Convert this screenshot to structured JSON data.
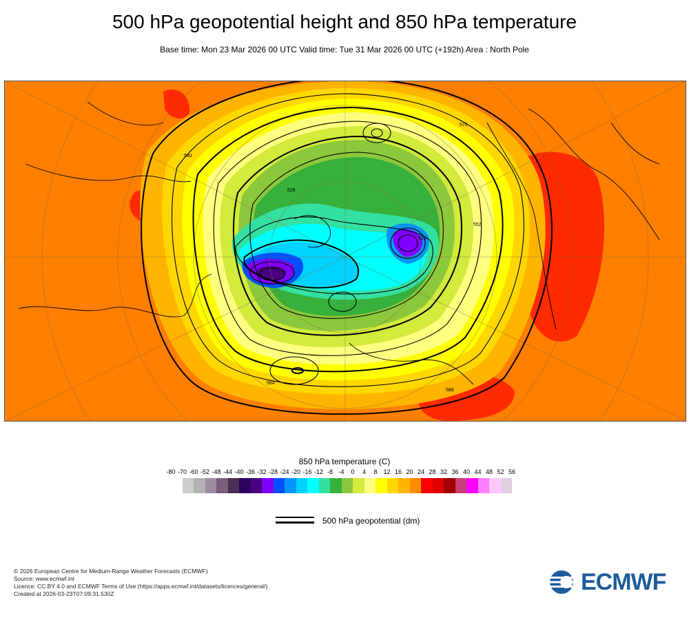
{
  "title": "500 hPa geopotential height and 850 hPa temperature",
  "subtitle": "Base time: Mon 23 Mar 2026 00 UTC Valid time: Tue 31 Mar 2026 00 UTC (+192h) Area : North Pole",
  "map": {
    "projection": "polar stereographic",
    "area": "North Pole",
    "contour_labels": [
      "516",
      "528",
      "540",
      "552",
      "564",
      "576",
      "588"
    ]
  },
  "legend": {
    "title": "850 hPa temperature (C)",
    "ticks": [
      "-80",
      "-70",
      "-60",
      "-52",
      "-48",
      "-44",
      "-40",
      "-36",
      "-32",
      "-28",
      "-24",
      "-20",
      "-16",
      "-12",
      "-8",
      "-4",
      "0",
      "4",
      "8",
      "12",
      "16",
      "20",
      "24",
      "28",
      "32",
      "36",
      "40",
      "44",
      "48",
      "52",
      "56"
    ],
    "colors": [
      "#e6e6e6",
      "#cccccc",
      "#b3b3b3",
      "#a08ca0",
      "#7b5f7b",
      "#4b2d55",
      "#2e005f",
      "#4b0082",
      "#7f00ff",
      "#0050ff",
      "#0096ff",
      "#00d2ff",
      "#00ffff",
      "#33e0a0",
      "#37b03c",
      "#8cc83c",
      "#d2eb3c",
      "#ffff80",
      "#ffff00",
      "#ffd700",
      "#ffb400",
      "#ff8c00",
      "#ff0000",
      "#dc0000",
      "#a00000",
      "#c83c78",
      "#ff00ff",
      "#ff80ff",
      "#ffc8ff",
      "#e0d0e0"
    ]
  },
  "contour_legend": {
    "label": "500 hPa geopotential (dm)"
  },
  "footer": {
    "lines": [
      "© 2026 European Centre for Medium-Range Weather Forecasts (ECMWF)",
      "Source: www.ecmwf.int",
      "Licence: CC BY 4.0 and ECMWF Terms of Use (https://apps.ecmwf.int/datasets/licences/general/)",
      "Created at 2026-03-23T07:09:31.530Z"
    ]
  },
  "logo": {
    "text": "ECMWF",
    "color": "#1d5c9a"
  }
}
